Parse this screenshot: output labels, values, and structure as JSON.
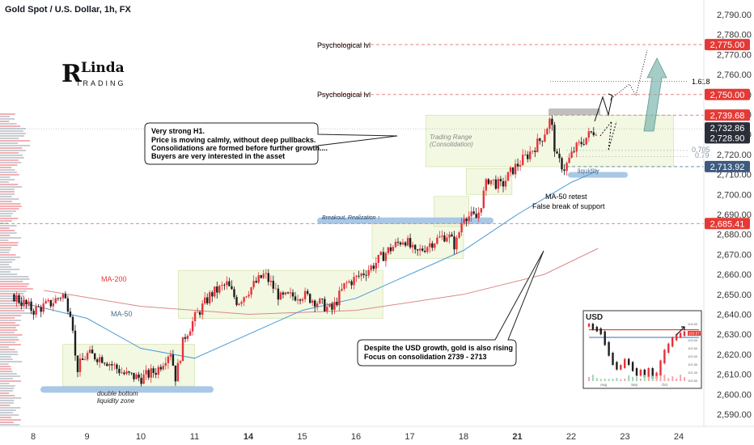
{
  "header": {
    "title": "Gold Spot / U.S. Dollar, 1h, FX"
  },
  "logo": {
    "line1": "Linda",
    "line2": "TRADING"
  },
  "colors": {
    "bull": "#e5333d",
    "bear": "#1e1e1e",
    "ma50": "#4a9bd4",
    "ma200": "#d88a8a",
    "zone": "#eef6d8",
    "zone_stroke": "#c9de9e",
    "liquidity": "#a9c8e6",
    "label_red": "#e53935",
    "label_dark": "#2a2e39",
    "label_blue": "#3d5a80",
    "arrow_teal": "#7fb6ae",
    "dashed_red": "#e57373"
  },
  "chart_data": {
    "type": "candlestick",
    "title": "Gold Spot / U.S. Dollar, 1h, FX",
    "ylim": [
      2585,
      2795
    ],
    "y_ticks": [
      2590,
      2600,
      2610,
      2620,
      2630,
      2640,
      2650,
      2660,
      2670,
      2680,
      2690,
      2700,
      2710,
      2720,
      2730,
      2740,
      2750,
      2760,
      2770,
      2780,
      2790
    ],
    "y_tick_labels": [
      "2,590.00",
      "2,600.00",
      "2,610.00",
      "2,620.00",
      "2,630.00",
      "2,640.00",
      "2,650.00",
      "2,660.00",
      "2,670.00",
      "2,680.00",
      "2,690.00",
      "2,700.00",
      "2,710.00",
      "2,720.00",
      "2,730.00",
      "2,740.00",
      "2,750.00",
      "2,760.00",
      "2,770.00",
      "2,780.00",
      "2,790.00"
    ],
    "x_labels": [
      {
        "label": "8",
        "day": 0,
        "bold": false
      },
      {
        "label": "9",
        "day": 1,
        "bold": false
      },
      {
        "label": "10",
        "day": 2,
        "bold": false
      },
      {
        "label": "11",
        "day": 3,
        "bold": false
      },
      {
        "label": "14",
        "day": 4,
        "bold": true
      },
      {
        "label": "15",
        "day": 5,
        "bold": false
      },
      {
        "label": "16",
        "day": 6,
        "bold": false
      },
      {
        "label": "17",
        "day": 7,
        "bold": false
      },
      {
        "label": "18",
        "day": 8,
        "bold": false
      },
      {
        "label": "21",
        "day": 9,
        "bold": true
      },
      {
        "label": "22",
        "day": 10,
        "bold": false
      },
      {
        "label": "23",
        "day": 11,
        "bold": false
      },
      {
        "label": "24",
        "day": 12,
        "bold": false
      }
    ],
    "price_path": [
      {
        "day": -0.4,
        "price": 2650
      },
      {
        "day": 0.0,
        "price": 2642
      },
      {
        "day": 0.3,
        "price": 2645
      },
      {
        "day": 0.55,
        "price": 2650
      },
      {
        "day": 0.72,
        "price": 2640
      },
      {
        "day": 0.8,
        "price": 2612
      },
      {
        "day": 1.0,
        "price": 2620
      },
      {
        "day": 1.3,
        "price": 2618
      },
      {
        "day": 1.7,
        "price": 2610
      },
      {
        "day": 2.0,
        "price": 2608
      },
      {
        "day": 2.3,
        "price": 2612
      },
      {
        "day": 2.55,
        "price": 2622
      },
      {
        "day": 2.65,
        "price": 2608
      },
      {
        "day": 2.8,
        "price": 2628
      },
      {
        "day": 3.0,
        "price": 2638
      },
      {
        "day": 3.3,
        "price": 2650
      },
      {
        "day": 3.6,
        "price": 2655
      },
      {
        "day": 3.8,
        "price": 2646
      },
      {
        "day": 4.0,
        "price": 2652
      },
      {
        "day": 4.3,
        "price": 2660
      },
      {
        "day": 4.6,
        "price": 2648
      },
      {
        "day": 5.0,
        "price": 2650
      },
      {
        "day": 5.3,
        "price": 2646
      },
      {
        "day": 5.55,
        "price": 2642
      },
      {
        "day": 5.8,
        "price": 2655
      },
      {
        "day": 6.0,
        "price": 2658
      },
      {
        "day": 6.3,
        "price": 2664
      },
      {
        "day": 6.6,
        "price": 2672
      },
      {
        "day": 6.9,
        "price": 2678
      },
      {
        "day": 7.1,
        "price": 2670
      },
      {
        "day": 7.4,
        "price": 2676
      },
      {
        "day": 7.7,
        "price": 2680
      },
      {
        "day": 7.85,
        "price": 2674
      },
      {
        "day": 8.0,
        "price": 2690
      },
      {
        "day": 8.25,
        "price": 2688
      },
      {
        "day": 8.45,
        "price": 2708
      },
      {
        "day": 8.7,
        "price": 2704
      },
      {
        "day": 8.9,
        "price": 2712
      },
      {
        "day": 9.2,
        "price": 2720
      },
      {
        "day": 9.45,
        "price": 2728
      },
      {
        "day": 9.62,
        "price": 2738
      },
      {
        "day": 9.72,
        "price": 2718
      },
      {
        "day": 9.88,
        "price": 2713
      },
      {
        "day": 10.05,
        "price": 2722
      },
      {
        "day": 10.3,
        "price": 2729
      },
      {
        "day": 10.48,
        "price": 2733
      }
    ],
    "ma_50": [
      {
        "day": -0.4,
        "price": 2647
      },
      {
        "day": 1.0,
        "price": 2638
      },
      {
        "day": 2.0,
        "price": 2623
      },
      {
        "day": 3.0,
        "price": 2618
      },
      {
        "day": 4.0,
        "price": 2630
      },
      {
        "day": 5.0,
        "price": 2642
      },
      {
        "day": 6.0,
        "price": 2648
      },
      {
        "day": 7.0,
        "price": 2660
      },
      {
        "day": 8.0,
        "price": 2672
      },
      {
        "day": 9.0,
        "price": 2690
      },
      {
        "day": 10.0,
        "price": 2706
      },
      {
        "day": 10.5,
        "price": 2712
      }
    ],
    "ma_200": [
      {
        "day": 0.2,
        "price": 2652
      },
      {
        "day": 2.0,
        "price": 2644
      },
      {
        "day": 4.0,
        "price": 2640
      },
      {
        "day": 6.0,
        "price": 2642
      },
      {
        "day": 8.0,
        "price": 2650
      },
      {
        "day": 9.5,
        "price": 2660
      },
      {
        "day": 10.5,
        "price": 2673
      }
    ],
    "horizontal_levels": [
      {
        "name": "psychological-2775",
        "price": 2775,
        "label": "2,775.00",
        "style": "red"
      },
      {
        "name": "psychological-2750",
        "price": 2750,
        "label": "2,750.00",
        "style": "red"
      },
      {
        "name": "resistance-2739",
        "price": 2739.68,
        "label": "2,739.68",
        "style": "red"
      },
      {
        "name": "support-2685",
        "price": 2685.41,
        "label": "2,685.41",
        "style": "red"
      },
      {
        "name": "fib-0.79",
        "price": 2713.92,
        "label": "2,713.92",
        "style": "blue"
      }
    ],
    "price_labels": [
      {
        "price": 2732.86,
        "label": "2,732.86",
        "style": "dark"
      },
      {
        "price": 2728.9,
        "label": "2,728.90",
        "style": "dark"
      }
    ],
    "annotations": {
      "psych_upper": "Psychological lvl",
      "psych_lower": "Psychological lvl",
      "fib_1618": "1.618",
      "fib_0705": "0.705",
      "fib_079": "0.79",
      "trading_range_1": "Trading Range",
      "trading_range_2": "(Consolidation)",
      "liquidity": "liquidity",
      "ma50_retest_1": "MA-50 retest",
      "ma50_retest_2": "False break of support",
      "breakout": "Breakout, Realization ↑",
      "ma200_label": "MA-200",
      "ma50_label": "MA-50",
      "double_bottom_1": "double bottom",
      "double_bottom_2": "liquidity zone",
      "callout_top": [
        "Very strong H1.",
        "Price is moving calmly, without deep pullbacks.",
        "Consolidations are formed before further growth....",
        "Buyers are very interested in the asset"
      ],
      "callout_bottom": [
        "Despite the USD growth, gold is also rising",
        "Focus on consolidation 2739 - 2713"
      ]
    }
  },
  "inset": {
    "title": "USD",
    "x_labels": [
      "Aug",
      "Sep",
      "Oct"
    ],
    "y_labels": [
      "104.00",
      "103.50",
      "103.00",
      "102.50",
      "102.00",
      "101.50",
      "101.00",
      "100.50"
    ],
    "series": [
      104.1,
      103.9,
      103.8,
      103.6,
      102.9,
      102.2,
      101.6,
      101.3,
      101.4,
      101.8,
      101.6,
      101.2,
      100.9,
      101.1,
      100.8,
      101.2,
      100.7,
      100.9,
      101.7,
      102.4,
      102.8,
      103.2,
      103.4,
      103.5,
      103.6
    ],
    "red_level": 103.8,
    "blue_level": 103.3,
    "current_label": "103.57"
  }
}
